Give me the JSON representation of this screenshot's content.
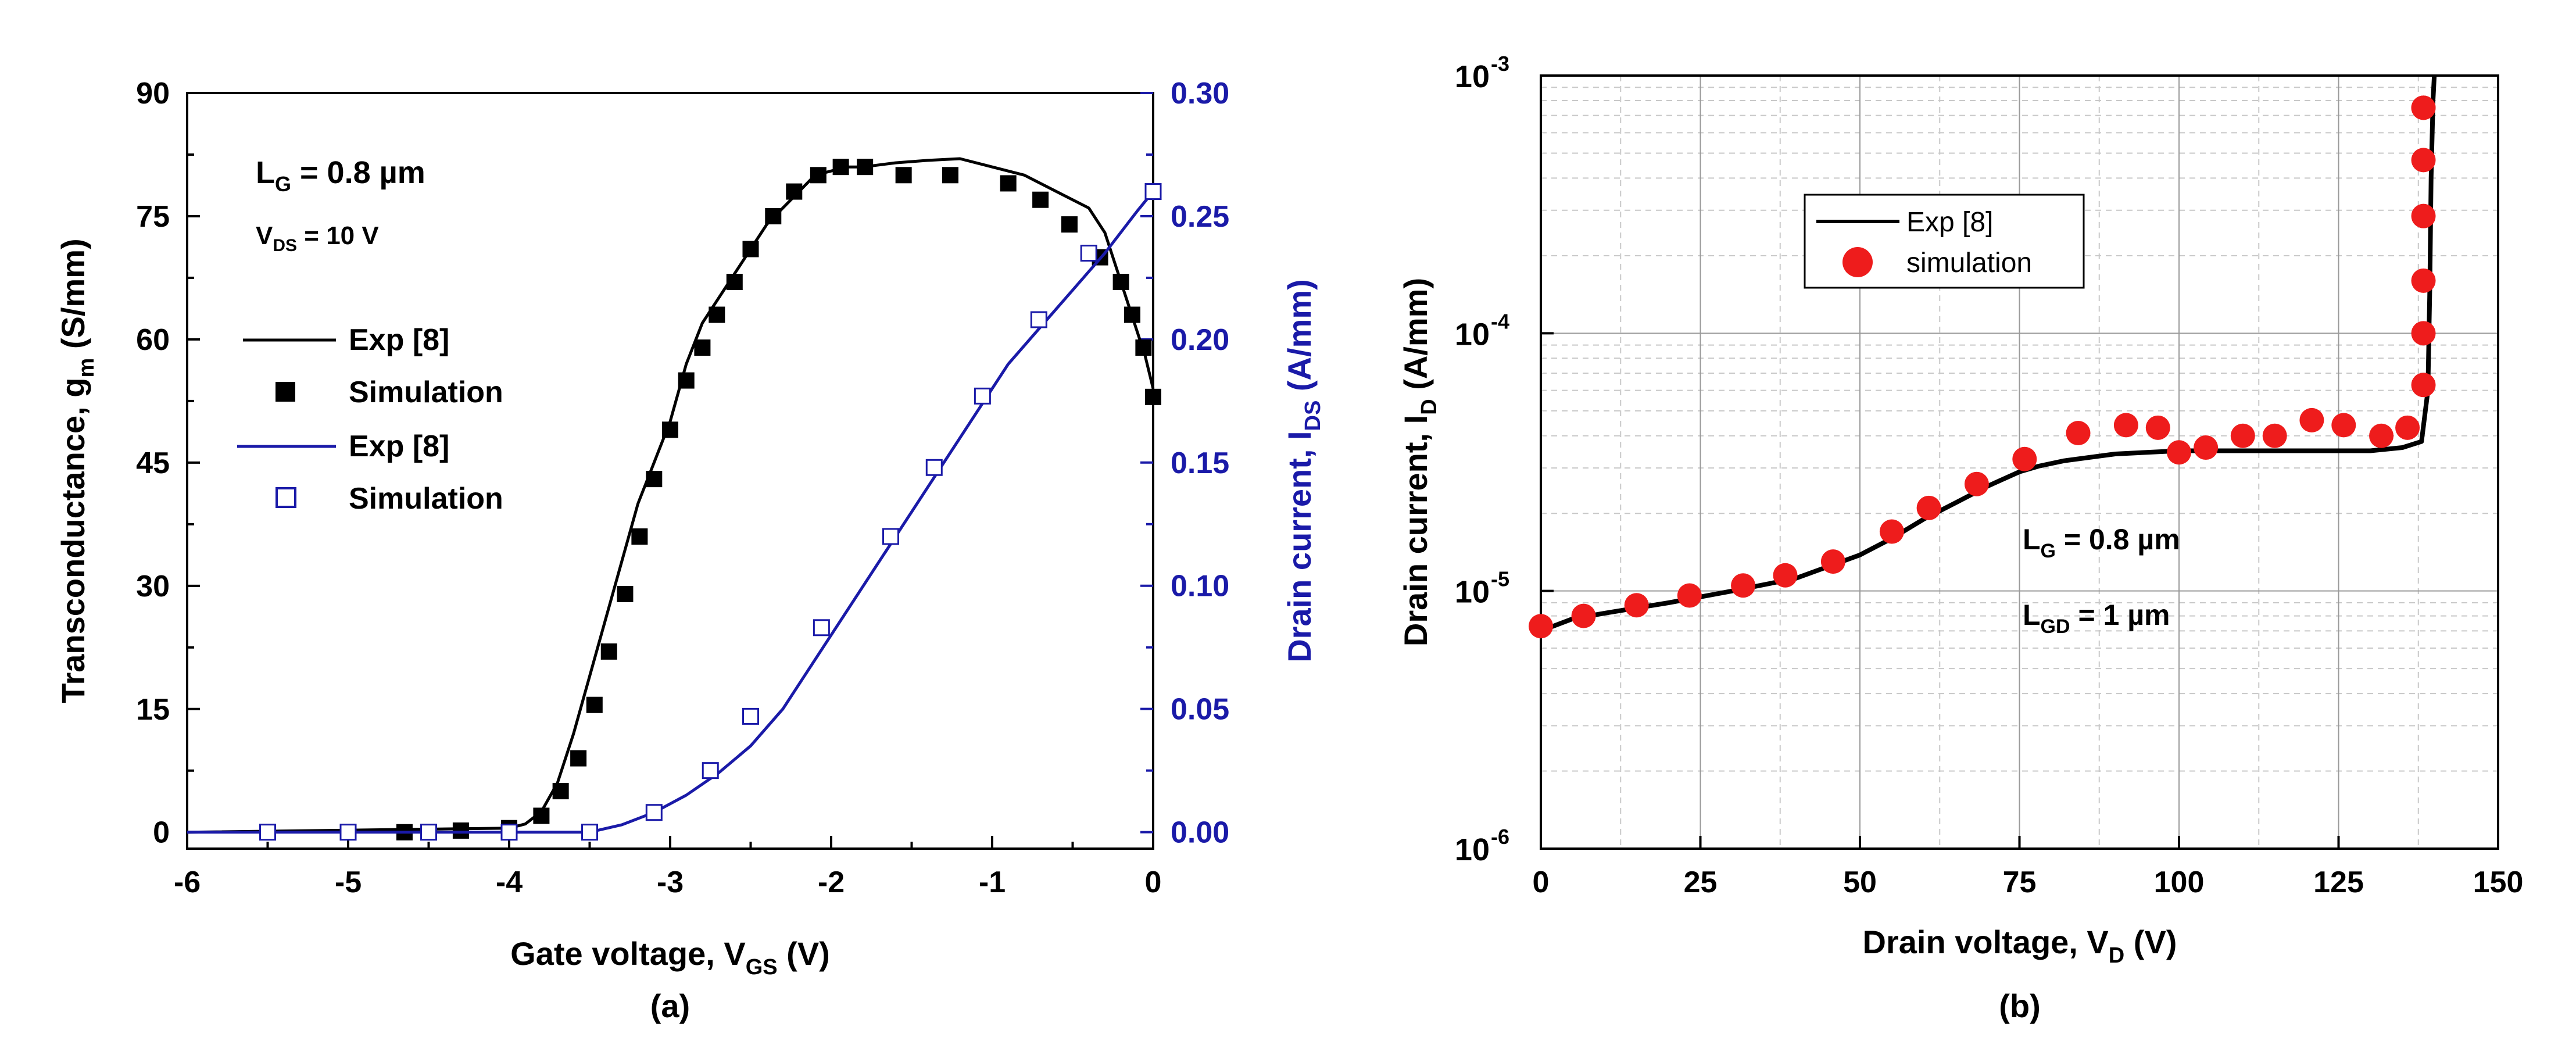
{
  "chart_data": [
    {
      "type": "line",
      "panel_label": "(a)",
      "xlabel": "Gate voltage, V",
      "xlabel_sub": "GS",
      "xlabel_unit": " (V)",
      "ylabel_left": "Transconductance, g",
      "ylabel_left_sub": "m",
      "ylabel_left_unit": " (S/mm)",
      "ylabel_right": "Drain current, I",
      "ylabel_right_sub": "DS",
      "ylabel_right_unit": " (A/mm)",
      "xlim": [
        -6,
        0
      ],
      "ylim_left": [
        -2,
        90
      ],
      "ylim_right": [
        -0.0067,
        0.3
      ],
      "xticks": [
        -6,
        -5,
        -4,
        -3,
        -2,
        -1,
        0
      ],
      "xtick_labels": [
        "-6",
        "-5",
        "-4",
        "-3",
        "-2",
        "-1",
        "0"
      ],
      "yticks_left": [
        0,
        15,
        30,
        45,
        60,
        75,
        90
      ],
      "ytick_labels_left": [
        "0",
        "15",
        "30",
        "45",
        "60",
        "75",
        "90"
      ],
      "yticks_right": [
        0.0,
        0.05,
        0.1,
        0.15,
        0.2,
        0.25,
        0.3
      ],
      "ytick_labels_right": [
        "0.00",
        "0.05",
        "0.10",
        "0.15",
        "0.20",
        "0.25",
        "0.30"
      ],
      "annotations": {
        "lg_main": "L",
        "lg_sub": "G",
        "lg_value": " = 0.8 µm",
        "vds_main": "V",
        "vds_sub": "DS",
        "vds_value": " = 10 V"
      },
      "legend": [
        {
          "label": "Exp [8]",
          "style": "black-line"
        },
        {
          "label": "Simulation",
          "style": "black-filled-square"
        },
        {
          "label": "Exp [8]",
          "style": "blue-line"
        },
        {
          "label": "Simulation",
          "style": "blue-open-square"
        }
      ],
      "colors": {
        "gm": "#000000",
        "ids": "#1a1aa8"
      },
      "series": [
        {
          "name": "gm Exp [8]",
          "axis": "left",
          "kind": "line",
          "x": [
            -6,
            -4.0,
            -3.9,
            -3.8,
            -3.7,
            -3.6,
            -3.5,
            -3.4,
            -3.3,
            -3.2,
            -3.1,
            -3.0,
            -2.9,
            -2.8,
            -2.7,
            -2.6,
            -2.5,
            -2.4,
            -2.3,
            -2.2,
            -2.1,
            -2.0,
            -1.9,
            -1.8,
            -1.6,
            -1.4,
            -1.2,
            -1.0,
            -0.8,
            -0.6,
            -0.4,
            -0.3,
            -0.2,
            -0.1,
            -0.05,
            0.0
          ],
          "y": [
            0,
            0.5,
            1.0,
            2.5,
            6,
            12,
            19,
            26,
            33,
            40,
            45,
            50,
            57,
            62,
            65,
            68,
            71,
            74,
            76,
            78,
            80,
            80.5,
            81,
            81,
            81.5,
            81.8,
            82,
            81,
            80,
            78,
            76,
            73,
            67,
            61,
            58,
            54
          ]
        },
        {
          "name": "gm Simulation",
          "axis": "left",
          "kind": "filled-square",
          "x": [
            -5.5,
            -5.0,
            -4.65,
            -4.3,
            -4.0,
            -3.8,
            -3.68,
            -3.57,
            -3.47,
            -3.38,
            -3.28,
            -3.19,
            -3.1,
            -3.0,
            -2.9,
            -2.8,
            -2.71,
            -2.6,
            -2.5,
            -2.36,
            -2.23,
            -2.08,
            -1.94,
            -1.79,
            -1.55,
            -1.26,
            -0.9,
            -0.7,
            -0.52,
            -0.33,
            -0.2,
            -0.13,
            -0.06,
            0.0
          ],
          "y": [
            0,
            0,
            0,
            0.2,
            0.5,
            2,
            5,
            9,
            15.5,
            22,
            29,
            36,
            43,
            49,
            55,
            59,
            63,
            67,
            71,
            75,
            78,
            80,
            81,
            81,
            80,
            80,
            79,
            77,
            74,
            70,
            67,
            63,
            59,
            53
          ]
        },
        {
          "name": "IDS Exp [8]",
          "axis": "right",
          "kind": "line",
          "x": [
            -6,
            -3.5,
            -3.3,
            -3.1,
            -2.9,
            -2.7,
            -2.5,
            -2.3,
            -2.1,
            -1.9,
            -1.7,
            -1.5,
            -1.3,
            -1.1,
            -0.9,
            -0.7,
            -0.5,
            -0.3,
            -0.1,
            0.0
          ],
          "y": [
            0.0,
            0.0,
            0.003,
            0.008,
            0.015,
            0.024,
            0.035,
            0.05,
            0.07,
            0.09,
            0.11,
            0.13,
            0.15,
            0.17,
            0.19,
            0.205,
            0.22,
            0.235,
            0.252,
            0.26
          ]
        },
        {
          "name": "IDS Simulation",
          "axis": "right",
          "kind": "open-square",
          "x": [
            -5.5,
            -5.0,
            -4.5,
            -4.0,
            -3.5,
            -3.1,
            -2.75,
            -2.5,
            -2.06,
            -1.63,
            -1.36,
            -1.06,
            -0.71,
            -0.4,
            0.0
          ],
          "y": [
            0.0,
            0.0,
            0.0,
            0.0,
            0.0,
            0.008,
            0.025,
            0.047,
            0.083,
            0.12,
            0.148,
            0.177,
            0.208,
            0.235,
            0.26
          ]
        }
      ]
    },
    {
      "type": "line",
      "panel_label": "(b)",
      "yscale": "log",
      "xlabel": "Drain voltage, V",
      "xlabel_sub": "D",
      "xlabel_unit": " (V)",
      "ylabel": "Drain current, I",
      "ylabel_sub": "D",
      "ylabel_unit": " (A/mm)",
      "xlim": [
        0,
        150
      ],
      "ylim": [
        1e-06,
        0.001
      ],
      "xticks": [
        0,
        25,
        50,
        75,
        100,
        125,
        150
      ],
      "xtick_labels": [
        "0",
        "25",
        "50",
        "75",
        "100",
        "125",
        "150"
      ],
      "yticks": [
        1e-06,
        1e-05,
        0.0001,
        0.001
      ],
      "ytick_labels": [
        {
          "base": "10",
          "exp": "-6"
        },
        {
          "base": "10",
          "exp": "-5"
        },
        {
          "base": "10",
          "exp": "-4"
        },
        {
          "base": "10",
          "exp": "-3"
        }
      ],
      "grid": true,
      "annotations": {
        "lg_main": "L",
        "lg_sub": "G",
        "lg_value": " = 0.8 µm",
        "lgd_main": "L",
        "lgd_sub": "GD",
        "lgd_value": " = 1 µm"
      },
      "legend": [
        {
          "label": "Exp [8]",
          "style": "black-line"
        },
        {
          "label": "simulation",
          "style": "red-circle"
        }
      ],
      "colors": {
        "exp": "#000000",
        "sim": "#ee1c1c"
      },
      "series": [
        {
          "name": "Exp [8]",
          "kind": "line",
          "x": [
            0,
            5,
            10,
            20,
            30,
            40,
            50,
            55,
            60,
            65,
            70,
            75,
            78,
            82,
            90,
            100,
            110,
            120,
            130,
            135,
            138,
            139,
            139.3,
            139.5,
            139.8,
            140.0
          ],
          "y": [
            7e-06,
            7.8e-06,
            8.2e-06,
            9e-06,
            1e-05,
            1.12e-05,
            1.38e-05,
            1.6e-05,
            1.9e-05,
            2.2e-05,
            2.55e-05,
            2.9e-05,
            3.05e-05,
            3.2e-05,
            3.4e-05,
            3.5e-05,
            3.5e-05,
            3.5e-05,
            3.5e-05,
            3.6e-05,
            3.8e-05,
            6e-05,
            0.00015,
            0.0004,
            0.0008,
            0.001
          ]
        },
        {
          "name": "simulation",
          "kind": "circle",
          "x": [
            0,
            6.7,
            15,
            23.3,
            31.7,
            38.3,
            45.8,
            55,
            60.8,
            68.3,
            75.8,
            84.2,
            91.7,
            96.7,
            100,
            104.2,
            110,
            115,
            120.8,
            125.8,
            131.7,
            135.8,
            138.3,
            138.3,
            138.3,
            138.3,
            138.3,
            138.3,
            138.3
          ],
          "y": [
            7.3e-06,
            8e-06,
            8.8e-06,
            9.6e-06,
            1.05e-05,
            1.15e-05,
            1.3e-05,
            1.7e-05,
            2.1e-05,
            2.6e-05,
            3.25e-05,
            4.1e-05,
            4.4e-05,
            4.3e-05,
            3.45e-05,
            3.6e-05,
            4e-05,
            4e-05,
            4.6e-05,
            4.4e-05,
            4e-05,
            4.3e-05,
            6.3e-05,
            0.0001,
            0.00016,
            0.000285,
            0.00047,
            0.00075,
            0.00075
          ]
        }
      ]
    }
  ]
}
